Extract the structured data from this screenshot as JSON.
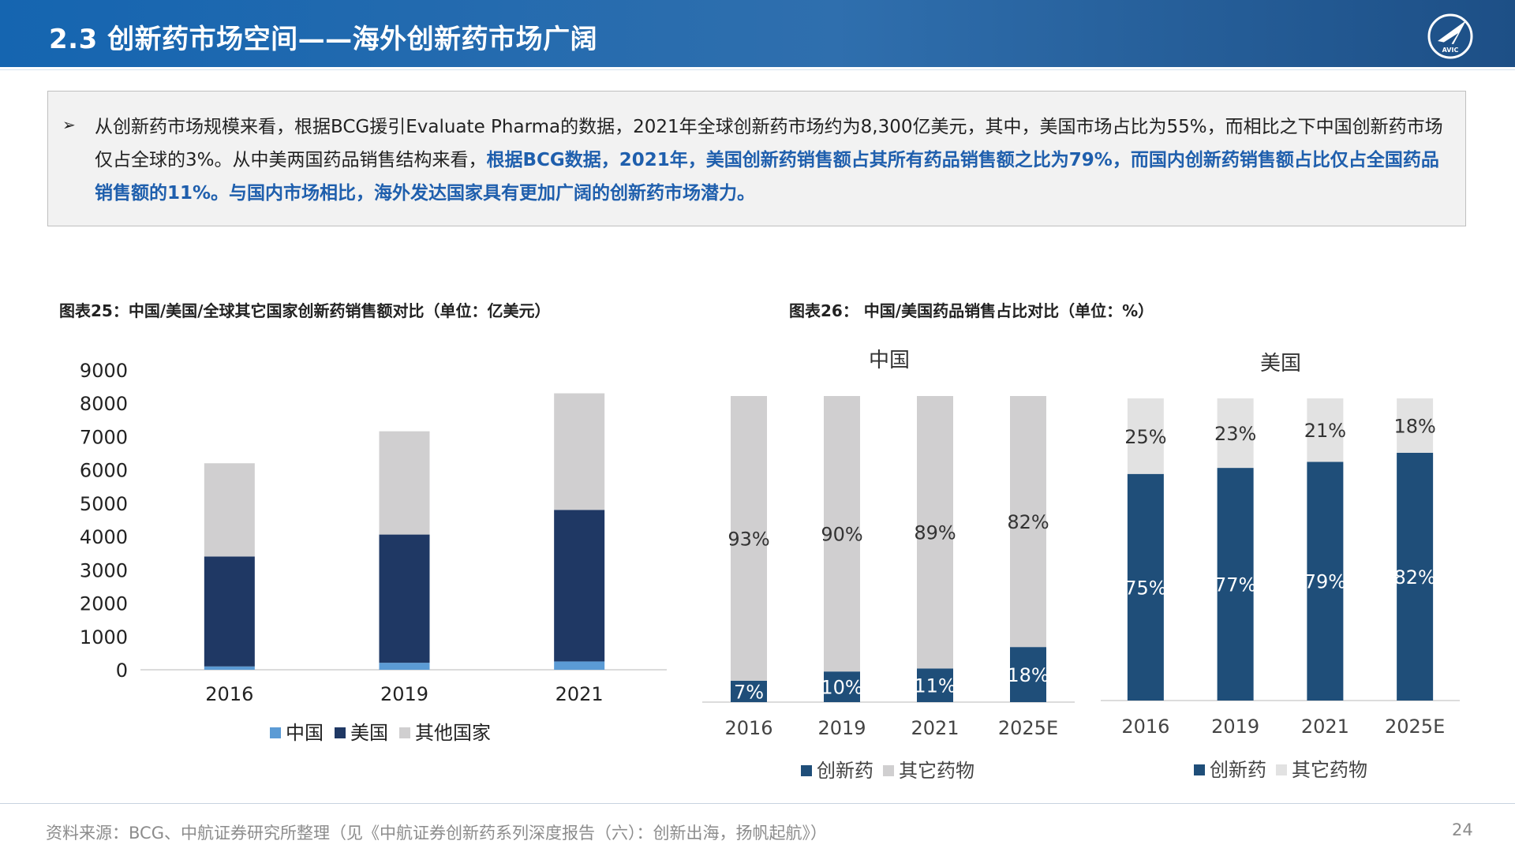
{
  "header": {
    "title": "2.3 创新药市场空间——海外创新药市场广阔",
    "logo_text": "AVIC"
  },
  "summary": {
    "bullet": "➢",
    "text_normal": "从创新药市场规模来看，根据BCG援引Evaluate Pharma的数据，2021年全球创新药市场约为8,300亿美元，其中，美国市场占比为55%，而相比之下中国创新药市场仅占全球的3%。从中美两国药品销售结构来看，",
    "text_highlight": "根据BCG数据，2021年，美国创新药销售额占其所有药品销售额之比为79%，而国内创新药销售额占比仅占全国药品销售额的11%。与国内市场相比，海外发达国家具有更加广阔的创新药市场潜力。"
  },
  "figure25": {
    "title": "图表25：中国/美国/全球其它国家创新药销售额对比（单位：亿美元）"
  },
  "figure26": {
    "title": "图表26： 中国/美国药品销售占比对比（单位：%）"
  },
  "chart_data": [
    {
      "type": "bar",
      "stacked": true,
      "categories": [
        "2016",
        "2019",
        "2021"
      ],
      "series": [
        {
          "name": "中国",
          "values": [
            100,
            210,
            250
          ],
          "color": "#5b9bd5"
        },
        {
          "name": "美国",
          "values": [
            3300,
            3850,
            4550
          ],
          "color": "#1f3864"
        },
        {
          "name": "其他国家",
          "values": [
            2800,
            3100,
            3500
          ],
          "color": "#d0cfd0"
        }
      ],
      "yticks": [
        "0",
        "1000",
        "2000",
        "3000",
        "4000",
        "5000",
        "6000",
        "7000",
        "8000",
        "9000"
      ],
      "ylim": [
        0,
        9000
      ],
      "legend": "bottom"
    },
    {
      "type": "bar",
      "stacked": true,
      "title": "中国",
      "categories": [
        "2016",
        "2019",
        "2021",
        "2025E"
      ],
      "series": [
        {
          "name": "创新药",
          "values": [
            7,
            10,
            11,
            18
          ],
          "labels": [
            "7%",
            "10%",
            "11%",
            "18%"
          ],
          "color": "#1f4e79"
        },
        {
          "name": "其它药物",
          "values": [
            93,
            90,
            89,
            82
          ],
          "labels": [
            "93%",
            "90%",
            "89%",
            "82%"
          ],
          "color": "#d0cfd0"
        }
      ],
      "ylim": [
        0,
        100
      ],
      "legend": "bottom"
    },
    {
      "type": "bar",
      "stacked": true,
      "title": "美国",
      "categories": [
        "2016",
        "2019",
        "2021",
        "2025E"
      ],
      "series": [
        {
          "name": "创新药",
          "values": [
            75,
            77,
            79,
            82
          ],
          "labels": [
            "75%",
            "77%",
            "79%",
            "82%"
          ],
          "color": "#1f4e79"
        },
        {
          "name": "其它药物",
          "values": [
            25,
            23,
            21,
            18
          ],
          "labels": [
            "25%",
            "23%",
            "21%",
            "18%"
          ],
          "color": "#e2e2e2"
        }
      ],
      "ylim": [
        0,
        100
      ],
      "legend": "bottom"
    }
  ],
  "footer": {
    "source": "资料来源：BCG、中航证券研究所整理（见《中航证券创新药系列深度报告（六）：创新出海，扬帆起航》）",
    "page": "24"
  }
}
